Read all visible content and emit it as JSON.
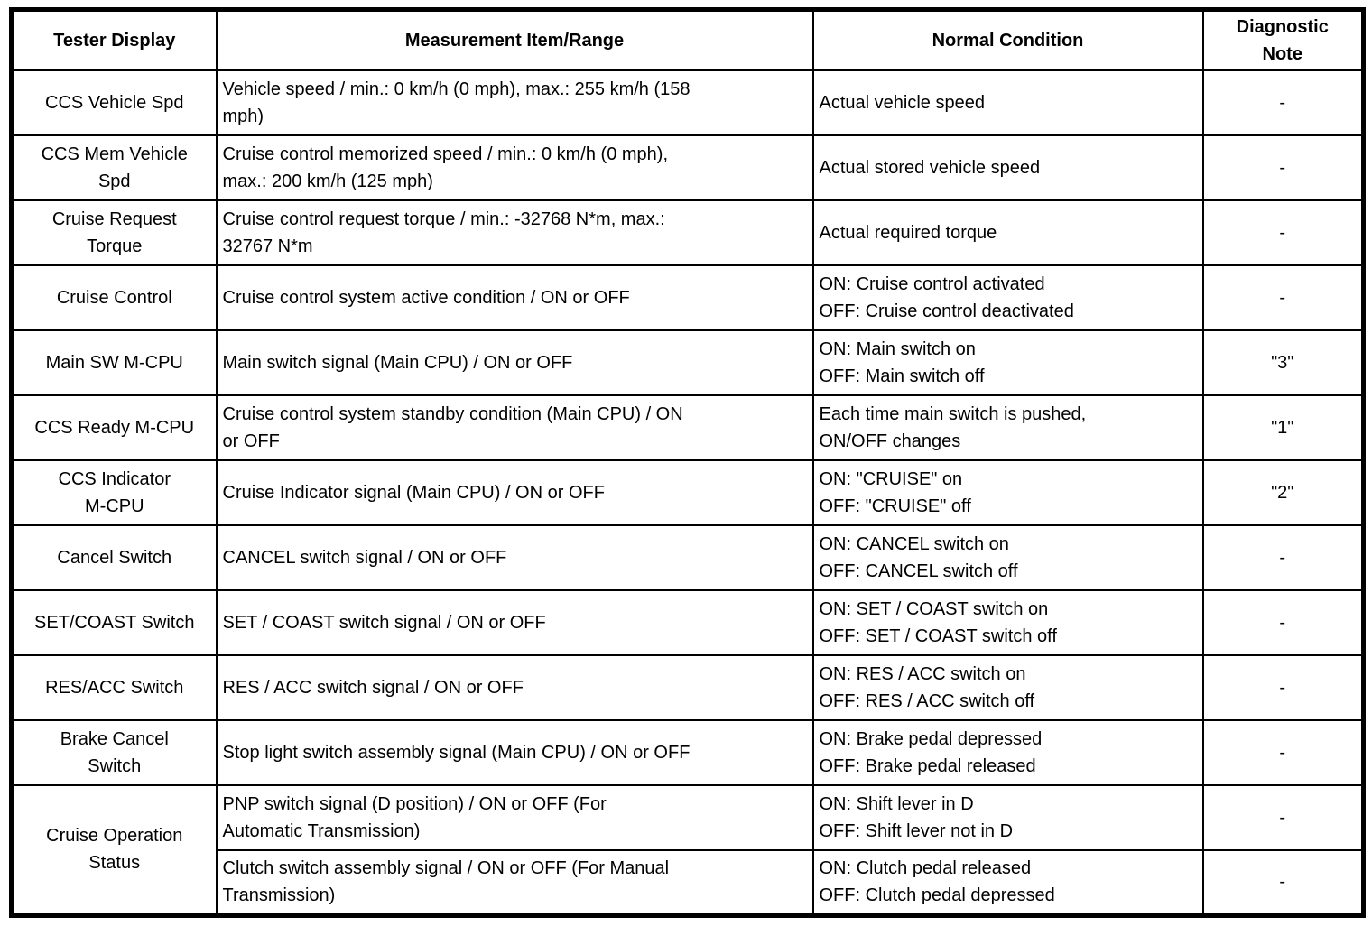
{
  "page": {
    "background_color": "#ffffff",
    "text_color": "#000000",
    "border_color": "#000000"
  },
  "table": {
    "headers": [
      "Tester Display",
      "Measurement Item/Range",
      "Normal Condition",
      "Diagnostic\nNote"
    ],
    "rows": [
      {
        "tester": "CCS Vehicle Spd",
        "measurement": "Vehicle speed / min.: 0 km/h (0 mph), max.: 255 km/h (158\nmph)",
        "condition": "Actual vehicle speed",
        "note": "-"
      },
      {
        "tester": "CCS Mem Vehicle\nSpd",
        "measurement": "Cruise control memorized speed / min.: 0 km/h (0 mph),\nmax.: 200 km/h (125 mph)",
        "condition": "Actual stored vehicle speed",
        "note": "-"
      },
      {
        "tester": "Cruise Request\nTorque",
        "measurement": "Cruise control request torque / min.: -32768 N*m, max.:\n32767 N*m",
        "condition": "Actual required torque",
        "note": "-"
      },
      {
        "tester": "Cruise Control",
        "measurement": "Cruise control system active condition / ON or OFF",
        "condition": "ON: Cruise control activated\nOFF: Cruise control deactivated",
        "note": "-"
      },
      {
        "tester": "Main SW M-CPU",
        "measurement": "Main switch signal (Main CPU) / ON or OFF",
        "condition": "ON: Main switch on\nOFF: Main switch off",
        "note": "\"3\""
      },
      {
        "tester": "CCS Ready M-CPU",
        "measurement": "Cruise control system standby condition (Main CPU) / ON\nor OFF",
        "condition": "Each time main switch is pushed,\nON/OFF changes",
        "note": "\"1\""
      },
      {
        "tester": "CCS Indicator\nM-CPU",
        "measurement": "Cruise Indicator signal (Main CPU) / ON or OFF",
        "condition": "ON: \"CRUISE\" on\nOFF: \"CRUISE\" off",
        "note": "\"2\""
      },
      {
        "tester": "Cancel Switch",
        "measurement": "CANCEL switch signal / ON or OFF",
        "condition": "ON: CANCEL switch on\nOFF: CANCEL switch off",
        "note": "-"
      },
      {
        "tester": "SET/COAST Switch",
        "measurement": "SET / COAST switch signal / ON or OFF",
        "condition": "ON: SET / COAST switch on\nOFF: SET / COAST switch off",
        "note": "-"
      },
      {
        "tester": "RES/ACC Switch",
        "measurement": "RES / ACC switch signal / ON or OFF",
        "condition": "ON: RES / ACC switch on\nOFF: RES / ACC switch off",
        "note": "-"
      },
      {
        "tester": "Brake Cancel\nSwitch",
        "measurement": "Stop light switch assembly signal (Main CPU) / ON or OFF",
        "condition": "ON: Brake pedal depressed\nOFF: Brake pedal released",
        "note": "-"
      },
      {
        "tester": "Cruise Operation\nStatus",
        "measurement": "PNP switch signal (D position) / ON or OFF (For\nAutomatic Transmission)",
        "condition": "ON: Shift lever in D\nOFF: Shift lever not in D",
        "note": "-"
      },
      {
        "measurement": "Clutch switch assembly signal / ON or OFF (For Manual\nTransmission)",
        "condition": "ON: Clutch pedal released\nOFF: Clutch pedal depressed",
        "note": "-"
      }
    ]
  }
}
